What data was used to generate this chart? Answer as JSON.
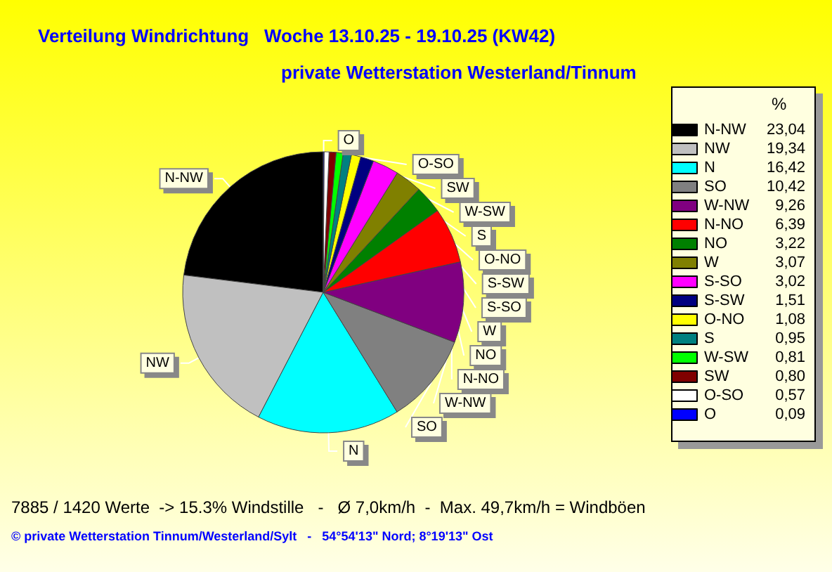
{
  "chart_data": {
    "type": "pie",
    "title": "Verteilung Windrichtung   Woche 13.10.25 - 19.10.25 (KW42)",
    "subtitle": "private Wetterstation Westerland/Tinnum",
    "categories": [
      "N-NW",
      "NW",
      "N",
      "SO",
      "W-NW",
      "N-NO",
      "NO",
      "W",
      "S-SO",
      "S-SW",
      "O-NO",
      "S",
      "W-SW",
      "SW",
      "O-SO",
      "O"
    ],
    "values": [
      23.04,
      19.34,
      16.42,
      10.42,
      9.26,
      6.39,
      3.22,
      3.07,
      3.02,
      1.51,
      1.08,
      0.95,
      0.81,
      0.8,
      0.57,
      0.09
    ],
    "value_labels": [
      "23,04",
      "19,34",
      "16,42",
      "10,42",
      "9,26",
      "6,39",
      "3,22",
      "3,07",
      "3,02",
      "1,51",
      "1,08",
      "0,95",
      "0,81",
      "0,80",
      "0,57",
      "0,09"
    ],
    "colors": [
      "#000000",
      "#c0c0c0",
      "#00ffff",
      "#808080",
      "#800080",
      "#ff0000",
      "#008000",
      "#808000",
      "#ff00ff",
      "#000080",
      "#ffff00",
      "#008080",
      "#00ff00",
      "#800000",
      "#ffffff",
      "#0000ff"
    ],
    "legend": "right",
    "legend_title": "%",
    "annotations": [
      "7885 / 1420 Werte  -> 15.3% Windstille   -   Ø 7,0km/h  -  Max. 49,7km/h = Windböen",
      "© private Wetterstation Tinnum/Westerland/Sylt   -   54°54'13\" Nord; 8°19'13\" Ost"
    ]
  }
}
